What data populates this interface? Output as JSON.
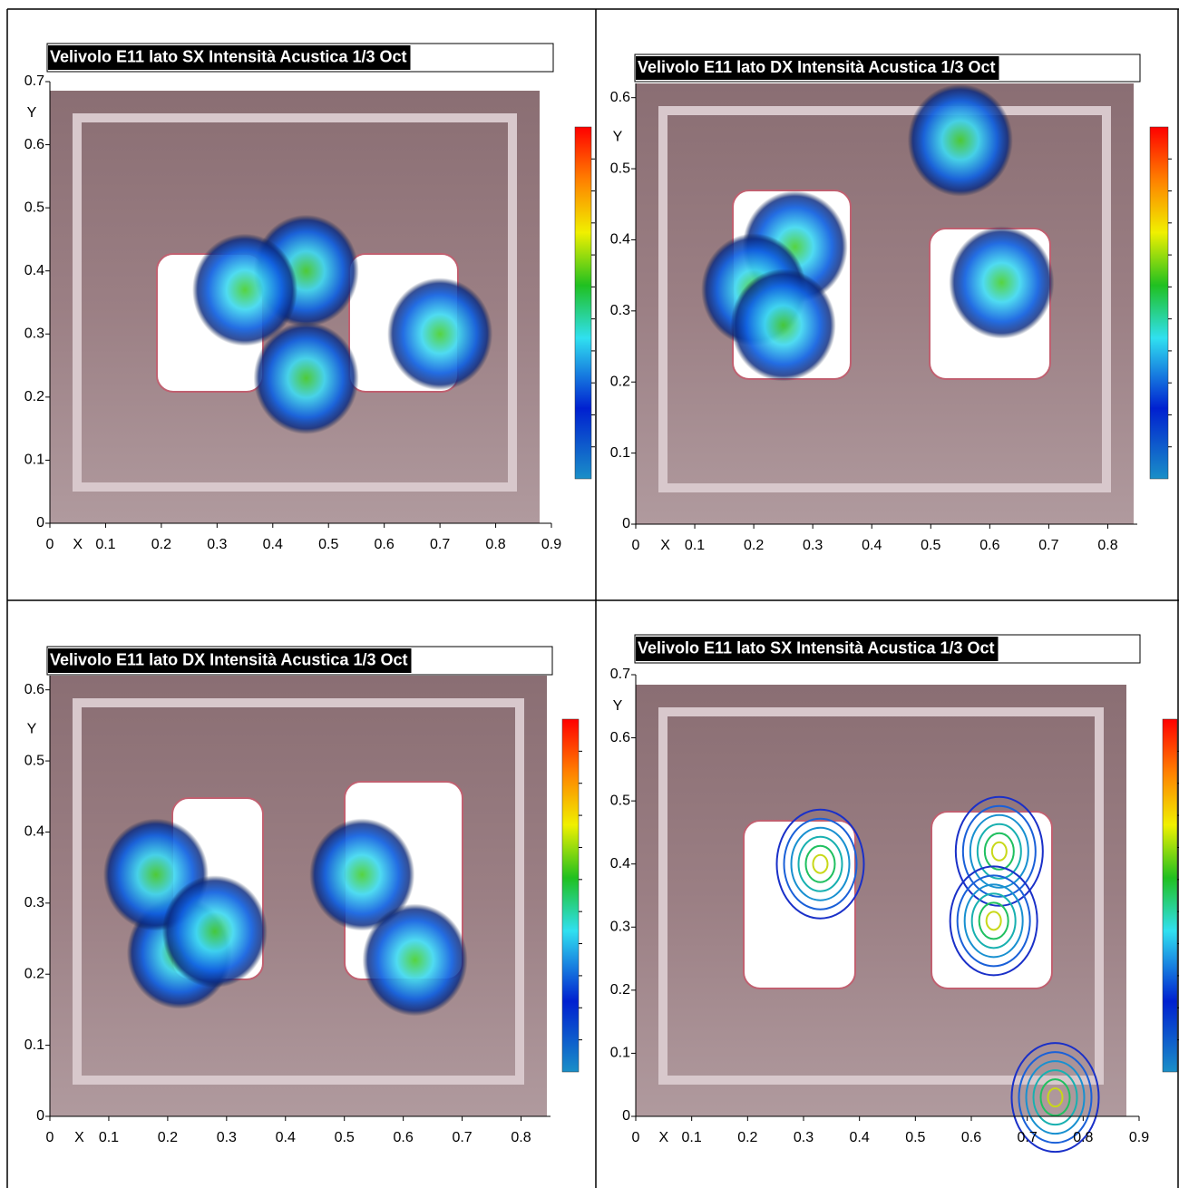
{
  "chart_data": [
    {
      "type": "heatmap",
      "title": "Velivolo E11 lato SX Intensità Acustica 1/3 Oct",
      "x_label": "X",
      "y_label": "Y",
      "xlim": [
        0,
        0.9
      ],
      "xticks": [
        0,
        0.1,
        0.2,
        0.3,
        0.4,
        0.5,
        0.6,
        0.7,
        0.8,
        0.9
      ],
      "ylim": [
        0,
        0.7
      ],
      "yticks": [
        0,
        0.1,
        0.2,
        0.3,
        0.4,
        0.5,
        0.6,
        0.7
      ],
      "x": [
        0.46,
        0.46,
        0.35,
        0.7
      ],
      "y": [
        0.4,
        0.23,
        0.37,
        0.3
      ]
    },
    {
      "type": "heatmap",
      "title": "Velivolo E11 lato DX Intensità Acustica 1/3 Oct",
      "x_label": "X",
      "y_label": "Y",
      "xlim": [
        0,
        0.85
      ],
      "xticks": [
        0,
        0.1,
        0.2,
        0.3,
        0.4,
        0.5,
        0.6,
        0.7,
        0.8
      ],
      "ylim": [
        0,
        0.62
      ],
      "yticks": [
        0,
        0.1,
        0.2,
        0.3,
        0.4,
        0.5,
        0.6
      ],
      "x": [
        0.27,
        0.2,
        0.25,
        0.62,
        0.55
      ],
      "y": [
        0.39,
        0.33,
        0.28,
        0.34,
        0.54
      ]
    },
    {
      "type": "heatmap",
      "title": "Velivolo E11 lato DX Intensità Acustica 1/3 Oct",
      "x_label": "X",
      "y_label": "Y",
      "xlim": [
        0,
        0.85
      ],
      "xticks": [
        0,
        0.1,
        0.2,
        0.3,
        0.4,
        0.5,
        0.6,
        0.7,
        0.8
      ],
      "ylim": [
        0,
        0.62
      ],
      "yticks": [
        0,
        0.1,
        0.2,
        0.3,
        0.4,
        0.5,
        0.6
      ],
      "x": [
        0.22,
        0.18,
        0.28,
        0.53,
        0.62
      ],
      "y": [
        0.23,
        0.34,
        0.26,
        0.34,
        0.22
      ]
    },
    {
      "type": "contour",
      "title": "Velivolo E11 lato SX Intensità Acustica 1/3 Oct",
      "x_label": "X",
      "y_label": "Y",
      "xlim": [
        0,
        0.9
      ],
      "xticks": [
        0,
        0.1,
        0.2,
        0.3,
        0.4,
        0.5,
        0.6,
        0.7,
        0.8,
        0.9
      ],
      "ylim": [
        0,
        0.7
      ],
      "yticks": [
        0,
        0.1,
        0.2,
        0.3,
        0.4,
        0.5,
        0.6,
        0.7
      ],
      "x": [
        0.33,
        0.65,
        0.64,
        0.75
      ],
      "y": [
        0.4,
        0.42,
        0.31,
        0.03
      ]
    }
  ]
}
